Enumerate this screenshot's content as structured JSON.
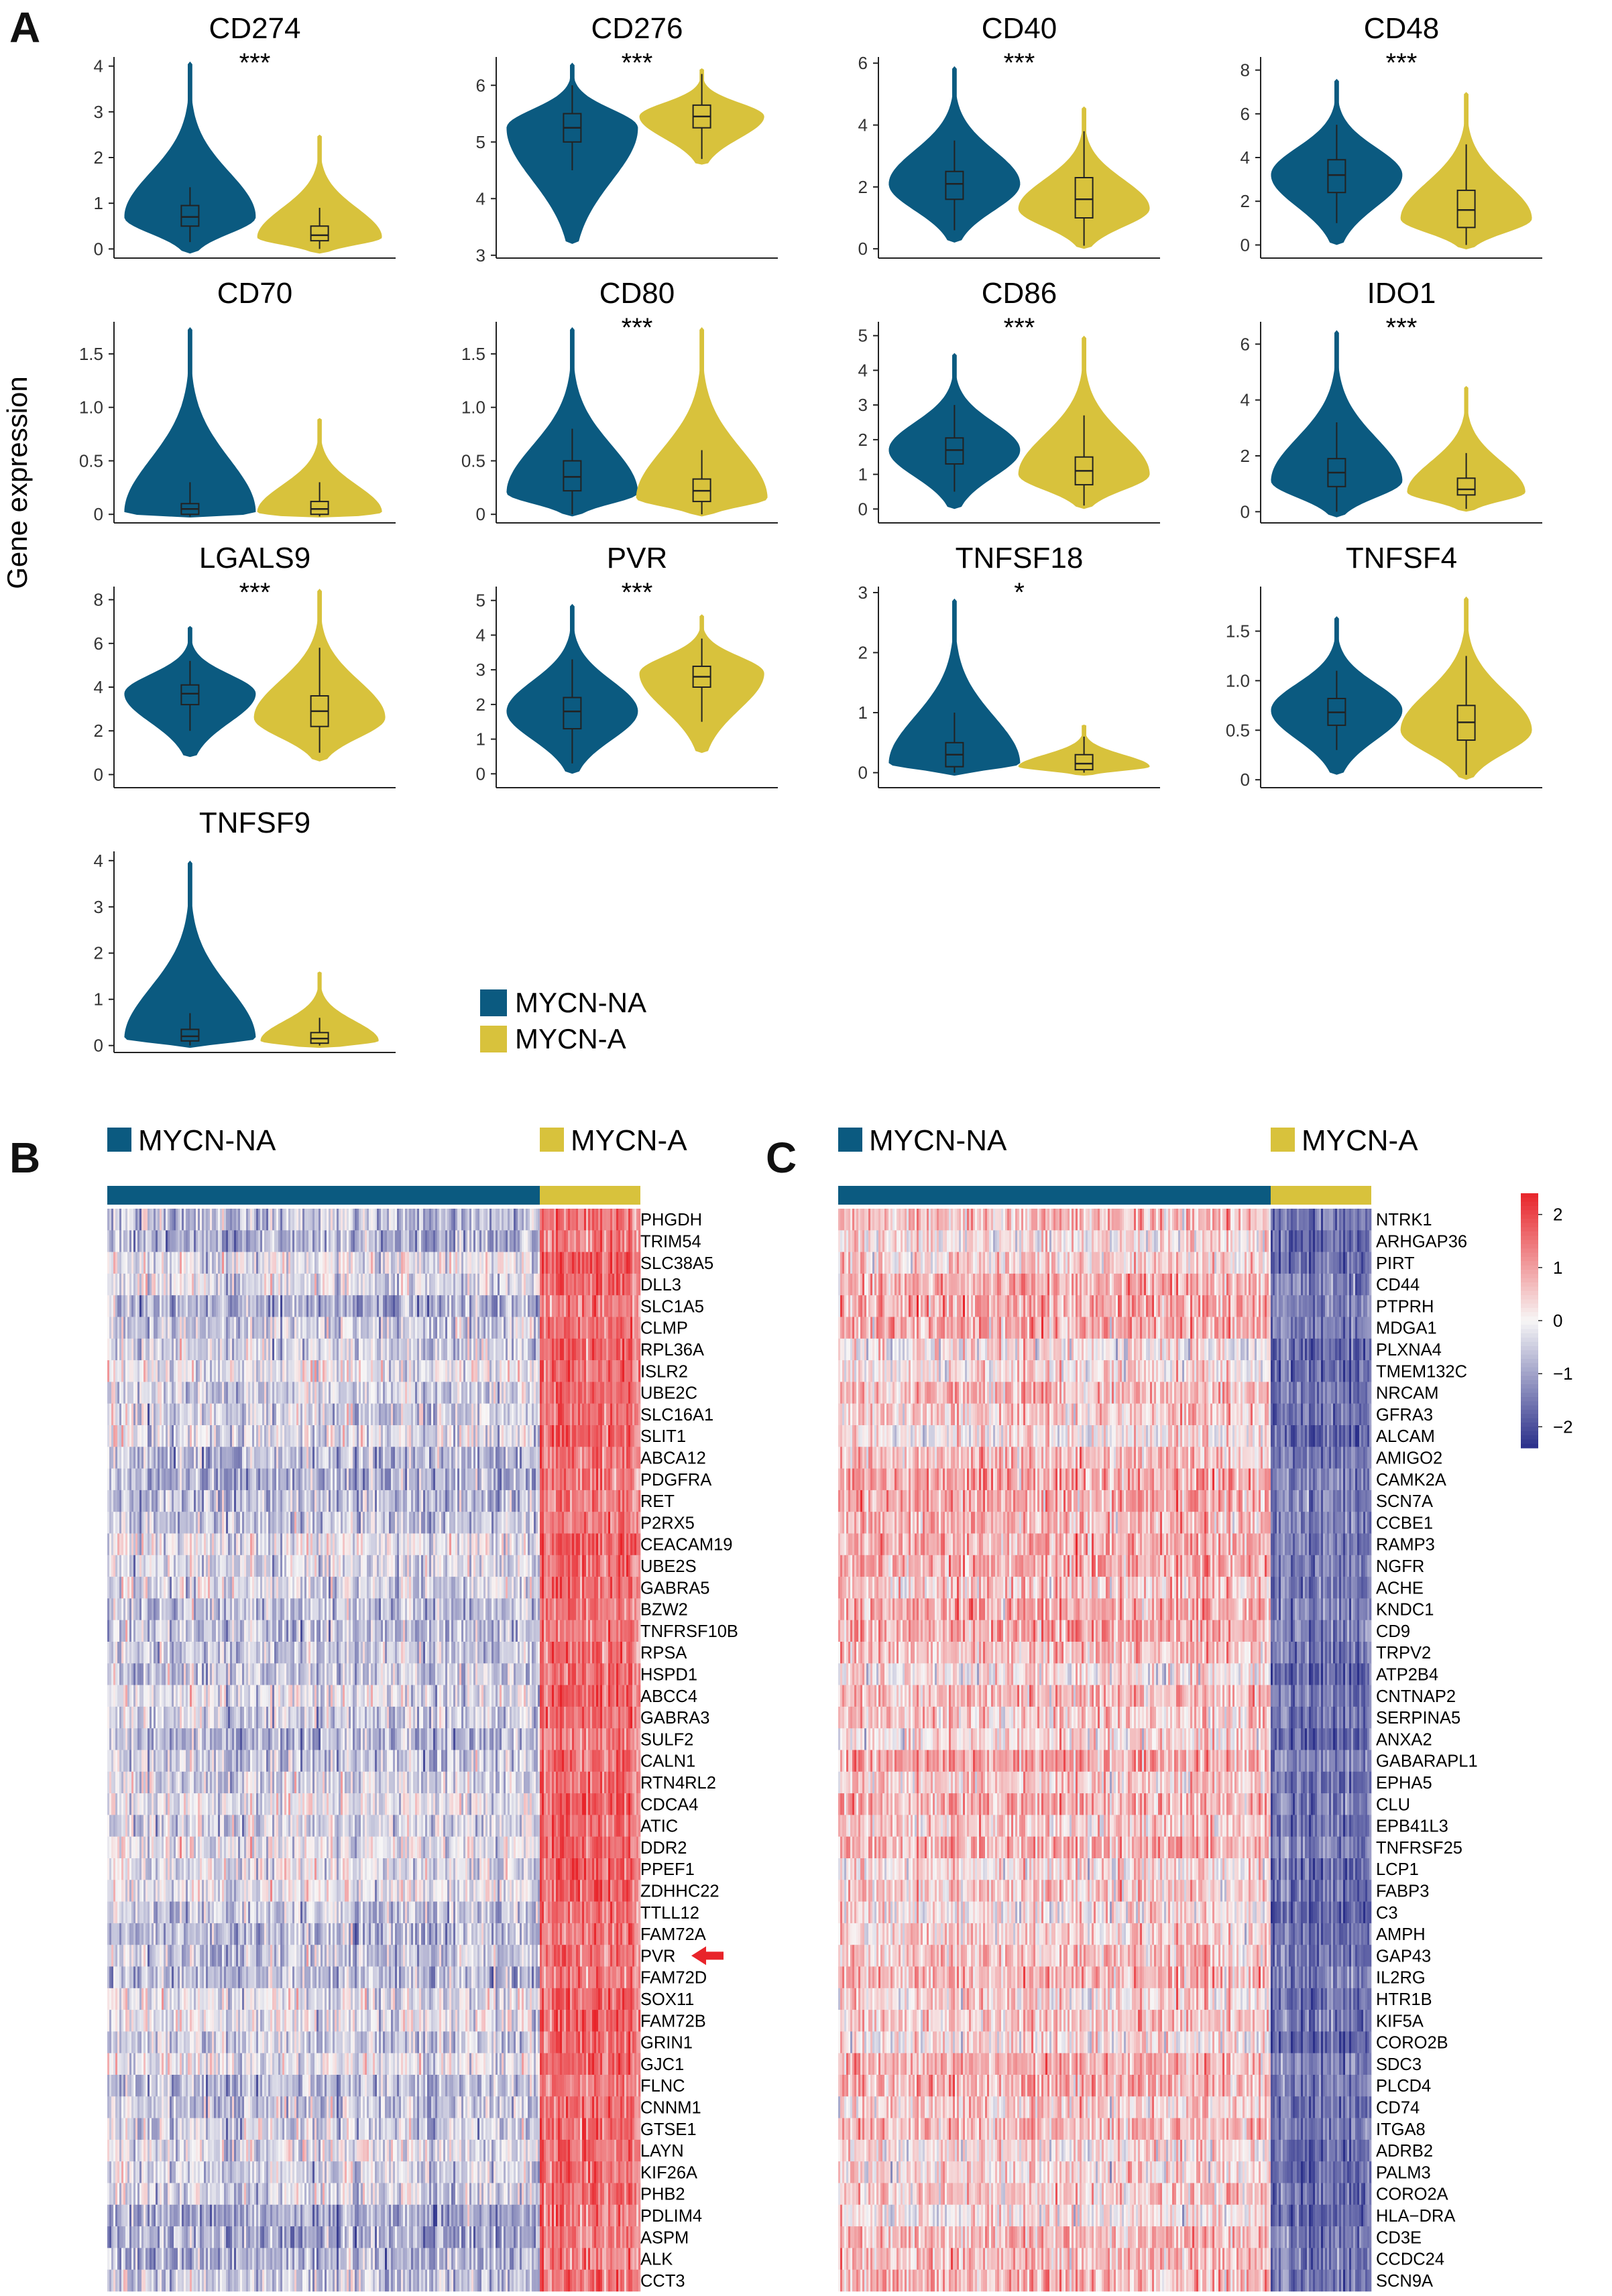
{
  "panel_labels": {
    "a": "A",
    "b": "B",
    "c": "C"
  },
  "y_axis_label": "Gene expression",
  "colors": {
    "mycn_na": "#0b5a80",
    "mycn_a": "#d8c23c",
    "red": "#e8242a",
    "blue": "#2a2f8a",
    "white": "#f7f6f6"
  },
  "legend": {
    "mycn_na": "MYCN-NA",
    "mycn_a": "MYCN-A"
  },
  "chart_data": [
    {
      "type": "violin",
      "groups": [
        "MYCN-NA",
        "MYCN-A"
      ],
      "ylabel": "Gene expression",
      "panels": [
        {
          "title": "CD274",
          "sig": "***",
          "ylim": [
            -0.2,
            4.2
          ],
          "ticks": [
            "0",
            "1",
            "2",
            "3",
            "4"
          ],
          "tickvals": [
            0,
            1,
            2,
            3,
            4
          ],
          "na": {
            "median": 0.7,
            "q1": 0.5,
            "q3": 0.95,
            "wl": 0.15,
            "wh": 1.35,
            "min": -0.1,
            "max": 4.1,
            "mode": 0.7,
            "width": 1.0
          },
          "a": {
            "median": 0.3,
            "q1": 0.18,
            "q3": 0.5,
            "wl": 0.0,
            "wh": 0.9,
            "min": -0.1,
            "max": 2.5,
            "mode": 0.25,
            "width": 0.95
          }
        },
        {
          "title": "CD276",
          "sig": "***",
          "ylim": [
            2.95,
            6.5
          ],
          "ticks": [
            "3",
            "4",
            "5",
            "6"
          ],
          "tickvals": [
            3,
            4,
            5,
            6
          ],
          "na": {
            "median": 5.25,
            "q1": 5.0,
            "q3": 5.5,
            "wl": 4.5,
            "wh": 6.0,
            "min": 3.2,
            "max": 6.4,
            "mode": 5.25,
            "width": 1.0
          },
          "a": {
            "median": 5.45,
            "q1": 5.25,
            "q3": 5.65,
            "wl": 4.7,
            "wh": 6.2,
            "min": 4.6,
            "max": 6.3,
            "mode": 5.45,
            "width": 0.95
          }
        },
        {
          "title": "CD40",
          "sig": "***",
          "ylim": [
            -0.3,
            6.2
          ],
          "ticks": [
            "0",
            "2",
            "4",
            "6"
          ],
          "tickvals": [
            0,
            2,
            4,
            6
          ],
          "na": {
            "median": 2.1,
            "q1": 1.6,
            "q3": 2.5,
            "wl": 0.6,
            "wh": 3.5,
            "min": 0.2,
            "max": 5.9,
            "mode": 2.1,
            "width": 1.0
          },
          "a": {
            "median": 1.6,
            "q1": 1.0,
            "q3": 2.3,
            "wl": 0.1,
            "wh": 3.8,
            "min": 0.0,
            "max": 4.6,
            "mode": 1.3,
            "width": 1.0
          }
        },
        {
          "title": "CD48",
          "sig": "***",
          "ylim": [
            -0.6,
            8.6
          ],
          "ticks": [
            "0",
            "2",
            "4",
            "6",
            "8"
          ],
          "tickvals": [
            0,
            2,
            4,
            6,
            8
          ],
          "na": {
            "median": 3.2,
            "q1": 2.4,
            "q3": 3.9,
            "wl": 1.0,
            "wh": 5.5,
            "min": 0.0,
            "max": 7.6,
            "mode": 3.2,
            "width": 1.0
          },
          "a": {
            "median": 1.6,
            "q1": 0.8,
            "q3": 2.5,
            "wl": 0.0,
            "wh": 4.6,
            "min": -0.2,
            "max": 7.0,
            "mode": 1.2,
            "width": 1.0
          }
        },
        {
          "title": "CD70",
          "sig": "",
          "ylim": [
            -0.08,
            1.8
          ],
          "ticks": [
            "0",
            "0.5",
            "1.0",
            "1.5"
          ],
          "tickvals": [
            0,
            0.5,
            1.0,
            1.5
          ],
          "na": {
            "median": 0.05,
            "q1": 0.0,
            "q3": 0.1,
            "wl": -0.02,
            "wh": 0.3,
            "min": -0.03,
            "max": 1.75,
            "mode": 0.02,
            "width": 1.0
          },
          "a": {
            "median": 0.05,
            "q1": 0.0,
            "q3": 0.12,
            "wl": -0.02,
            "wh": 0.3,
            "min": -0.03,
            "max": 0.9,
            "mode": 0.02,
            "width": 0.95
          }
        },
        {
          "title": "CD80",
          "sig": "***",
          "ylim": [
            -0.08,
            1.8
          ],
          "ticks": [
            "0",
            "0.5",
            "1.0",
            "1.5"
          ],
          "tickvals": [
            0,
            0.5,
            1.0,
            1.5
          ],
          "na": {
            "median": 0.35,
            "q1": 0.22,
            "q3": 0.5,
            "wl": 0.0,
            "wh": 0.8,
            "min": -0.02,
            "max": 1.75,
            "mode": 0.2,
            "width": 1.0
          },
          "a": {
            "median": 0.22,
            "q1": 0.12,
            "q3": 0.33,
            "wl": 0.0,
            "wh": 0.6,
            "min": -0.02,
            "max": 1.75,
            "mode": 0.15,
            "width": 1.0
          }
        },
        {
          "title": "CD86",
          "sig": "***",
          "ylim": [
            -0.4,
            5.4
          ],
          "ticks": [
            "0",
            "1",
            "2",
            "3",
            "4",
            "5"
          ],
          "tickvals": [
            0,
            1,
            2,
            3,
            4,
            5
          ],
          "na": {
            "median": 1.7,
            "q1": 1.3,
            "q3": 2.05,
            "wl": 0.5,
            "wh": 3.0,
            "min": 0.0,
            "max": 4.5,
            "mode": 1.7,
            "width": 1.0
          },
          "a": {
            "median": 1.1,
            "q1": 0.7,
            "q3": 1.5,
            "wl": 0.1,
            "wh": 2.7,
            "min": 0.0,
            "max": 5.0,
            "mode": 1.0,
            "width": 1.0
          }
        },
        {
          "title": "IDO1",
          "sig": "***",
          "ylim": [
            -0.4,
            6.8
          ],
          "ticks": [
            "0",
            "2",
            "4",
            "6"
          ],
          "tickvals": [
            0,
            2,
            4,
            6
          ],
          "na": {
            "median": 1.4,
            "q1": 0.9,
            "q3": 1.9,
            "wl": 0.0,
            "wh": 3.2,
            "min": -0.2,
            "max": 6.5,
            "mode": 1.1,
            "width": 1.0
          },
          "a": {
            "median": 0.8,
            "q1": 0.6,
            "q3": 1.2,
            "wl": 0.1,
            "wh": 2.1,
            "min": 0.0,
            "max": 4.5,
            "mode": 0.7,
            "width": 0.9
          }
        },
        {
          "title": "LGALS9",
          "sig": "***",
          "ylim": [
            -0.6,
            8.6
          ],
          "ticks": [
            "0",
            "2",
            "4",
            "6",
            "8"
          ],
          "tickvals": [
            0,
            2,
            4,
            6,
            8
          ],
          "na": {
            "median": 3.7,
            "q1": 3.2,
            "q3": 4.1,
            "wl": 2.0,
            "wh": 5.2,
            "min": 0.8,
            "max": 6.8,
            "mode": 3.7,
            "width": 1.0
          },
          "a": {
            "median": 2.9,
            "q1": 2.2,
            "q3": 3.6,
            "wl": 1.0,
            "wh": 5.8,
            "min": 0.6,
            "max": 8.5,
            "mode": 2.6,
            "width": 1.0
          }
        },
        {
          "title": "PVR",
          "sig": "***",
          "ylim": [
            -0.4,
            5.4
          ],
          "ticks": [
            "0",
            "1",
            "2",
            "3",
            "4",
            "5"
          ],
          "tickvals": [
            0,
            1,
            2,
            3,
            4,
            5
          ],
          "na": {
            "median": 1.8,
            "q1": 1.3,
            "q3": 2.2,
            "wl": 0.3,
            "wh": 3.3,
            "min": 0.0,
            "max": 4.9,
            "mode": 1.8,
            "width": 1.0
          },
          "a": {
            "median": 2.8,
            "q1": 2.5,
            "q3": 3.1,
            "wl": 1.5,
            "wh": 3.9,
            "min": 0.6,
            "max": 4.6,
            "mode": 2.9,
            "width": 0.95
          }
        },
        {
          "title": "TNFSF18",
          "sig": "*",
          "ylim": [
            -0.25,
            3.1
          ],
          "ticks": [
            "0",
            "1",
            "2",
            "3"
          ],
          "tickvals": [
            0,
            1,
            2,
            3
          ],
          "na": {
            "median": 0.3,
            "q1": 0.1,
            "q3": 0.5,
            "wl": 0.0,
            "wh": 1.0,
            "min": -0.05,
            "max": 2.9,
            "mode": 0.15,
            "width": 1.0
          },
          "a": {
            "median": 0.15,
            "q1": 0.05,
            "q3": 0.3,
            "wl": 0.0,
            "wh": 0.6,
            "min": -0.05,
            "max": 0.8,
            "mode": 0.1,
            "width": 1.0
          }
        },
        {
          "title": "TNFSF4",
          "sig": "",
          "ylim": [
            -0.08,
            1.95
          ],
          "ticks": [
            "0",
            "0.5",
            "1.0",
            "1.5"
          ],
          "tickvals": [
            0,
            0.5,
            1.0,
            1.5
          ],
          "na": {
            "median": 0.68,
            "q1": 0.55,
            "q3": 0.82,
            "wl": 0.3,
            "wh": 1.1,
            "min": 0.05,
            "max": 1.65,
            "mode": 0.7,
            "width": 1.0
          },
          "a": {
            "median": 0.58,
            "q1": 0.4,
            "q3": 0.75,
            "wl": 0.05,
            "wh": 1.25,
            "min": 0.0,
            "max": 1.85,
            "mode": 0.5,
            "width": 1.0
          }
        },
        {
          "title": "TNFSF9",
          "sig": "",
          "ylim": [
            -0.15,
            4.2
          ],
          "ticks": [
            "0",
            "1",
            "2",
            "3",
            "4"
          ],
          "tickvals": [
            0,
            1,
            2,
            3,
            4
          ],
          "na": {
            "median": 0.2,
            "q1": 0.1,
            "q3": 0.35,
            "wl": 0.0,
            "wh": 0.7,
            "min": -0.05,
            "max": 4.0,
            "mode": 0.15,
            "width": 1.0
          },
          "a": {
            "median": 0.15,
            "q1": 0.05,
            "q3": 0.28,
            "wl": 0.0,
            "wh": 0.6,
            "min": -0.05,
            "max": 1.6,
            "mode": 0.1,
            "width": 0.9
          }
        }
      ]
    },
    {
      "type": "heatmap",
      "panel": "B",
      "groups": [
        "MYCN-NA",
        "MYCN-A"
      ],
      "pattern": "MYCN-A samples high (red), MYCN-NA samples low (blue)",
      "highlight_gene": "PVR",
      "genes": [
        "PHGDH",
        "TRIM54",
        "SLC38A5",
        "DLL3",
        "SLC1A5",
        "CLMP",
        "RPL36A",
        "ISLR2",
        "UBE2C",
        "SLC16A1",
        "SLIT1",
        "ABCA12",
        "PDGFRA",
        "RET",
        "P2RX5",
        "CEACAM19",
        "UBE2S",
        "GABRA5",
        "BZW2",
        "TNFRSF10B",
        "RPSA",
        "HSPD1",
        "ABCC4",
        "GABRA3",
        "SULF2",
        "CALN1",
        "RTN4RL2",
        "CDCA4",
        "ATIC",
        "DDR2",
        "PPEF1",
        "ZDHHC22",
        "TTLL12",
        "FAM72A",
        "PVR",
        "FAM72D",
        "SOX11",
        "FAM72B",
        "GRIN1",
        "GJC1",
        "FLNC",
        "CNNM1",
        "GTSE1",
        "LAYN",
        "KIF26A",
        "PHB2",
        "PDLIM4",
        "ASPM",
        "ALK",
        "CCT3"
      ]
    },
    {
      "type": "heatmap",
      "panel": "C",
      "groups": [
        "MYCN-NA",
        "MYCN-A"
      ],
      "pattern": "MYCN-NA samples high (red), MYCN-A samples low (blue)",
      "colorbar": {
        "min": -2.4,
        "max": 2.4,
        "ticks": [
          2,
          1,
          0,
          -1,
          -2
        ],
        "tick_labels": [
          "2",
          "1",
          "0",
          "−1",
          "−2"
        ]
      },
      "genes": [
        "NTRK1",
        "ARHGAP36",
        "PIRT",
        "CD44",
        "PTPRH",
        "MDGA1",
        "PLXNA4",
        "TMEM132C",
        "NRCAM",
        "GFRA3",
        "ALCAM",
        "AMIGO2",
        "CAMK2A",
        "SCN7A",
        "CCBE1",
        "RAMP3",
        "NGFR",
        "ACHE",
        "KNDC1",
        "CD9",
        "TRPV2",
        "ATP2B4",
        "CNTNAP2",
        "SERPINA5",
        "ANXA2",
        "GABARAPL1",
        "EPHA5",
        "CLU",
        "EPB41L3",
        "TNFRSF25",
        "LCP1",
        "FABP3",
        "C3",
        "AMPH",
        "GAP43",
        "IL2RG",
        "HTR1B",
        "KIF5A",
        "CORO2B",
        "SDC3",
        "PLCD4",
        "CD74",
        "ITGA8",
        "ADRB2",
        "PALM3",
        "CORO2A",
        "HLA−DRA",
        "CD3E",
        "CCDC24",
        "SCN9A"
      ]
    }
  ]
}
